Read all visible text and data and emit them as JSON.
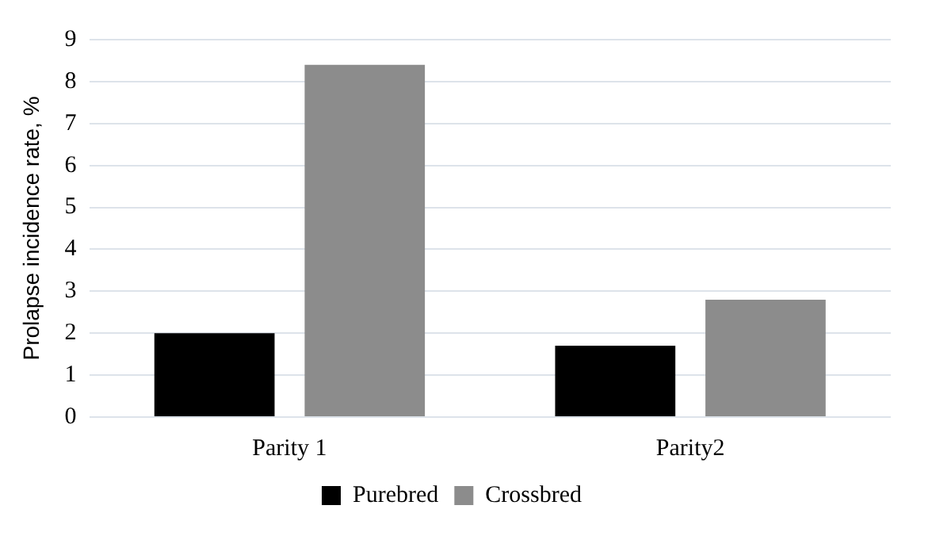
{
  "chart_data": {
    "type": "bar",
    "ylabel": "Prolapse incidence rate, %",
    "categories": [
      "Parity 1",
      "Parity2"
    ],
    "series": [
      {
        "name": "Purebred",
        "color": "#000000",
        "values": [
          2.0,
          1.7
        ]
      },
      {
        "name": "Crossbred",
        "color": "#8c8c8c",
        "values": [
          8.4,
          2.8
        ]
      }
    ],
    "ylim": [
      0,
      9
    ],
    "yticks": [
      0,
      1,
      2,
      3,
      4,
      5,
      6,
      7,
      8,
      9
    ],
    "grid": "y",
    "legend": "bottom"
  }
}
